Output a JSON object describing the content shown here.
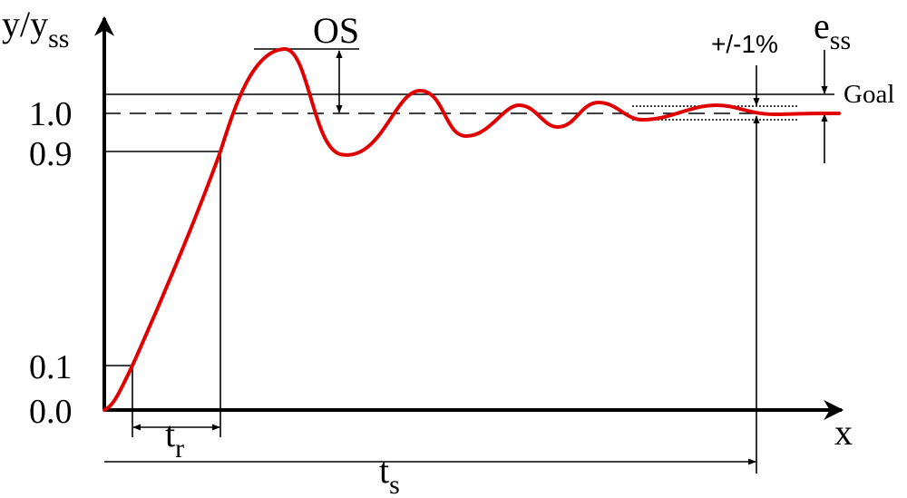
{
  "labels": {
    "y_axis": "y/y",
    "y_axis_sub": "ss",
    "x_axis": "x",
    "overshoot": "OS",
    "band": "+/-1%",
    "ess": "e",
    "ess_sub": "ss",
    "goal": "Goal",
    "rise_time": "t",
    "rise_time_sub": "r",
    "settling_time": "t",
    "settling_time_sub": "s"
  },
  "ticks": [
    "1.0",
    "0.9",
    "0.1",
    "0.0"
  ],
  "colors": {
    "response": "#e00000",
    "lines": "#000000"
  }
}
